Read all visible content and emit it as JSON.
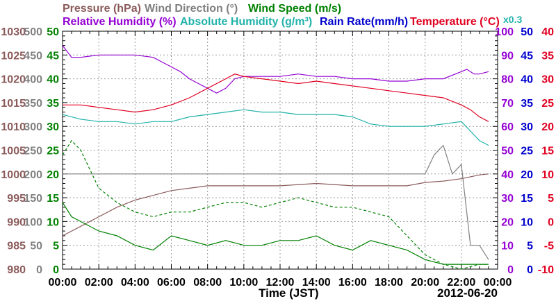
{
  "chart_data": {
    "type": "line",
    "date_label": "2012-06-20",
    "xlabel": "Time (JST)",
    "x_ticks": [
      "00:00",
      "02:00",
      "04:00",
      "06:00",
      "08:00",
      "10:00",
      "12:00",
      "14:00",
      "16:00",
      "18:00",
      "20:00",
      "22:00",
      "00:00"
    ],
    "axes": {
      "pressure": {
        "label": "Pressure (hPa)",
        "color": "#8b5a5a",
        "range": [
          980,
          1030
        ],
        "ticks": [
          "1030",
          "1025",
          "1020",
          "1015",
          "1010",
          "1005",
          "1000",
          "995",
          "990",
          "985",
          "980"
        ]
      },
      "wind_direction": {
        "label": "Wind Direction (°)",
        "color": "#808080",
        "range": [
          0,
          500
        ],
        "ticks": [
          "500",
          "450",
          "400",
          "350",
          "300",
          "250",
          "200",
          "150",
          "100",
          "50",
          "0"
        ]
      },
      "wind_speed": {
        "label": "Wind Speed (m/s)",
        "color": "#008000",
        "range": [
          0,
          50
        ],
        "ticks": [
          "50",
          "45",
          "40",
          "35",
          "30",
          "25",
          "20",
          "15",
          "10",
          "5",
          "0"
        ]
      },
      "relative_humidity": {
        "label": "Relative Humidity (%)",
        "color": "#9400d3",
        "range": [
          0,
          100
        ],
        "ticks": [
          "100",
          "90",
          "80",
          "70",
          "60",
          "50",
          "40",
          "30",
          "20",
          "10",
          "0"
        ]
      },
      "rain_rate": {
        "label": "Rain Rate(mm/h)",
        "color": "#0000cd",
        "range": [
          0,
          50
        ],
        "ticks": [
          "50",
          "45",
          "40",
          "35",
          "30",
          "25",
          "20",
          "15",
          "10",
          "5",
          "0"
        ]
      },
      "temperature": {
        "label": "Temperature (°C)",
        "color": "#e00020",
        "range": [
          -10,
          40
        ],
        "ticks": [
          "40",
          "35",
          "30",
          "25",
          "20",
          "15",
          "10",
          "5",
          "0",
          "-5",
          "-10"
        ]
      },
      "absolute_humidity": {
        "label": "Absolute Humidity (g/m³)",
        "color": "#20b2aa",
        "scale_note": "x0.3"
      }
    },
    "series": [
      {
        "name": "Pressure (hPa)",
        "axis": "pressure",
        "color": "#8b5a5a",
        "x": [
          0,
          1,
          2,
          3,
          4,
          5,
          6,
          7,
          8,
          9,
          10,
          12,
          14,
          16,
          18,
          19,
          20,
          21,
          22,
          23,
          23.5
        ],
        "y": [
          987,
          989,
          991,
          993,
          994.5,
          995.5,
          996.5,
          997,
          997.5,
          997.5,
          997.5,
          997.5,
          998,
          997.5,
          997.5,
          997.5,
          998.2,
          998.5,
          999,
          999.8,
          1000
        ]
      },
      {
        "name": "Relative Humidity (%)",
        "axis": "relative_humidity",
        "color": "#9400d3",
        "x": [
          0,
          0.2,
          0.5,
          1,
          2,
          3,
          4,
          5,
          5.5,
          6,
          6.5,
          7,
          7.5,
          8,
          8.5,
          9,
          9.5,
          10,
          11,
          12,
          13,
          14,
          15,
          16,
          17,
          18,
          19,
          20,
          21,
          22,
          22.3,
          22.7,
          23,
          23.5
        ],
        "y": [
          94,
          92,
          89,
          89,
          90,
          90,
          90,
          89,
          87,
          85,
          83,
          80,
          78,
          76,
          74,
          76,
          80,
          81,
          81,
          81,
          82,
          81,
          81,
          80,
          80,
          79,
          79,
          80,
          80,
          83,
          84,
          82,
          82,
          83
        ]
      },
      {
        "name": "Temperature (°C)",
        "axis": "temperature",
        "color": "#e00020",
        "x": [
          0,
          1,
          2,
          3,
          4,
          5,
          6,
          7,
          8,
          9,
          9.5,
          10,
          11,
          12,
          13,
          14,
          15,
          16,
          17,
          18,
          19,
          20,
          21,
          22,
          22.5,
          23,
          23.5
        ],
        "y": [
          24.5,
          24.5,
          24,
          23.5,
          23,
          23.5,
          24.5,
          26,
          28,
          30,
          31,
          30.5,
          30,
          29.5,
          29,
          29.5,
          29,
          28.5,
          28,
          27.5,
          27,
          26.5,
          26,
          24.5,
          23.5,
          22,
          21
        ]
      },
      {
        "name": "Absolute Humidity (g/m³)",
        "axis": "relative_humidity",
        "color": "#20b2aa",
        "x": [
          0,
          1,
          2,
          3,
          4,
          5,
          6,
          7,
          8,
          9,
          10,
          11,
          12,
          13,
          14,
          15,
          16,
          17,
          18,
          19,
          20,
          21,
          22,
          22.5,
          23,
          23.5
        ],
        "y": [
          65,
          63,
          62,
          62,
          61,
          62,
          62,
          64,
          65,
          66,
          67,
          66,
          66,
          65,
          65,
          65,
          64,
          61,
          60,
          60,
          60,
          61,
          62,
          58,
          54,
          52
        ]
      },
      {
        "name": "Wind Speed (m/s)",
        "axis": "wind_speed",
        "color": "#008000",
        "x": [
          0,
          0.5,
          1,
          2,
          3,
          4,
          5,
          6,
          7,
          8,
          9,
          10,
          11,
          12,
          13,
          14,
          15,
          16,
          17,
          18,
          19,
          20,
          21,
          22,
          23,
          23.5
        ],
        "y": [
          14,
          11,
          10,
          8,
          7,
          5,
          4,
          7,
          6,
          5,
          6,
          5,
          5,
          6,
          6,
          7,
          5,
          4,
          6,
          5,
          4,
          2,
          1,
          1,
          1,
          1
        ]
      },
      {
        "name": "Wind Speed (m/s) dashed",
        "axis": "wind_speed",
        "color": "#008000",
        "x": [
          0,
          0.5,
          1,
          1.5,
          2,
          3,
          4,
          5,
          6,
          7,
          8,
          9,
          10,
          11,
          12,
          13,
          14,
          15,
          16,
          17,
          18,
          19,
          20,
          21,
          22,
          23,
          23.5
        ],
        "y": [
          24,
          27,
          25,
          21,
          17,
          14,
          12,
          11,
          12,
          12,
          13,
          14,
          14,
          13,
          14,
          15,
          14,
          13,
          13,
          12,
          11,
          7,
          3,
          1,
          0,
          1,
          1
        ]
      },
      {
        "name": "Wind Direction (°)",
        "axis": "wind_direction",
        "color": "#808080",
        "x": [
          0,
          1,
          2,
          3,
          4,
          5,
          6,
          7,
          8,
          9,
          10,
          12,
          14,
          16,
          18,
          19,
          20,
          20.5,
          21,
          21.5,
          22,
          22.5,
          23,
          23.5
        ],
        "y": [
          200,
          200,
          200,
          200,
          200,
          200,
          200,
          200,
          200,
          200,
          200,
          200,
          200,
          200,
          200,
          200,
          200,
          240,
          260,
          200,
          220,
          50,
          50,
          20
        ]
      }
    ]
  }
}
